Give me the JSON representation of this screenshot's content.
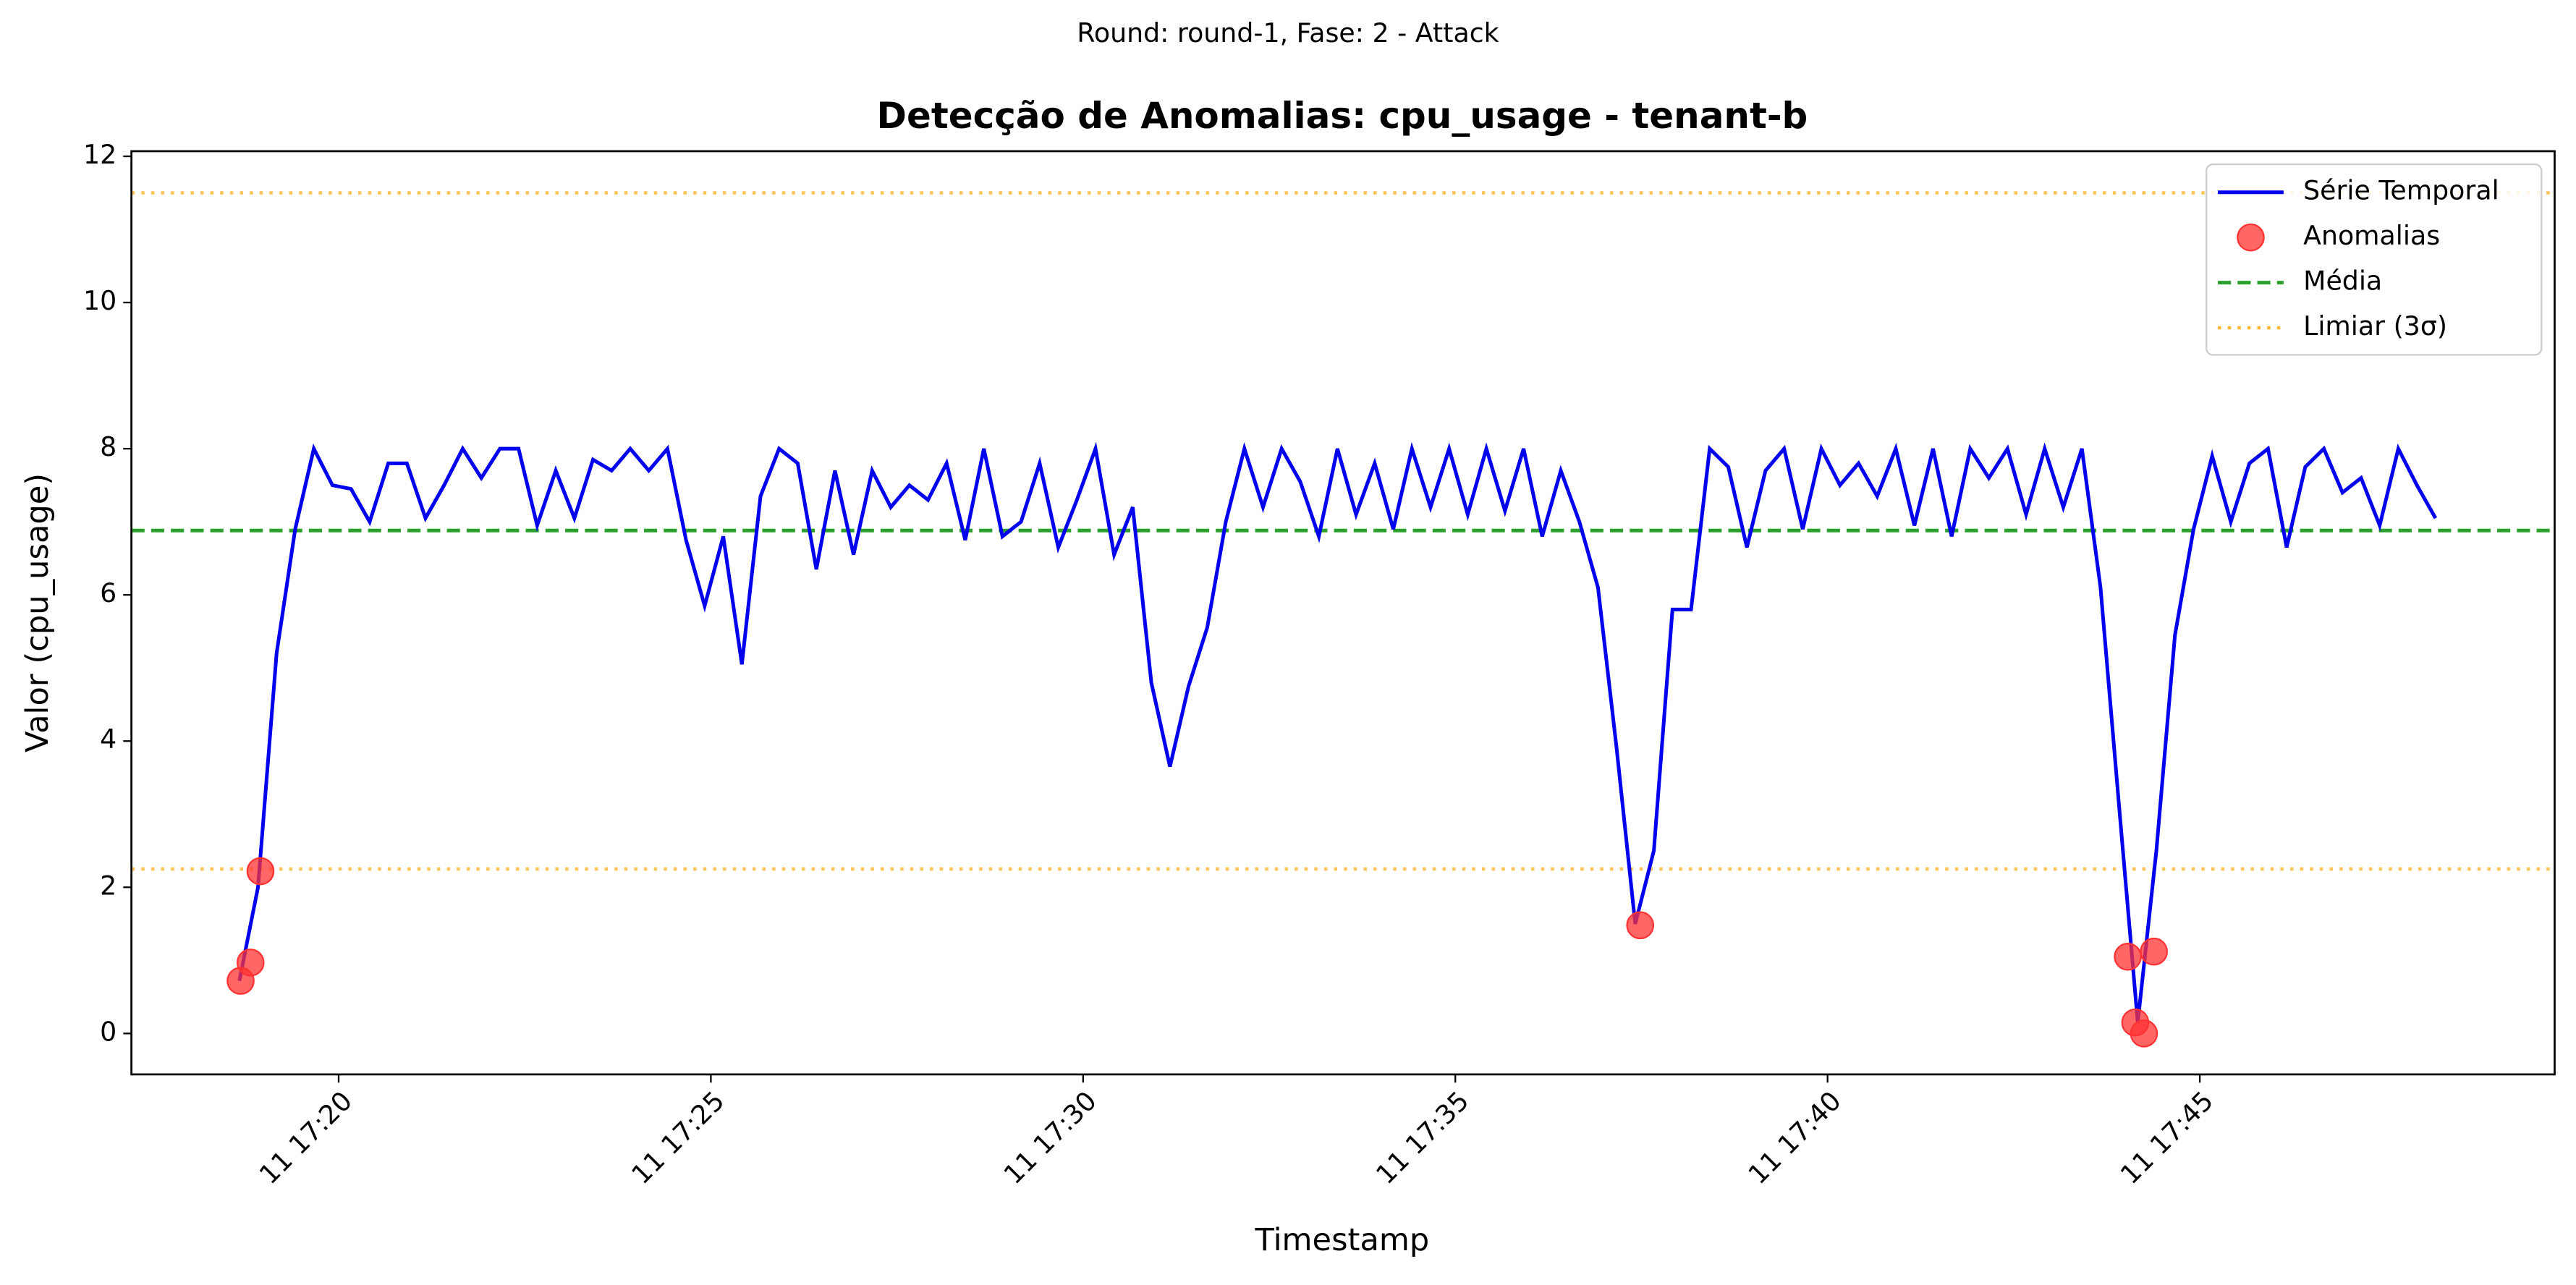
{
  "chart_data": {
    "type": "line",
    "suptitle": "Round: round-1, Fase: 2 - Attack",
    "title": "Detecção de Anomalias: cpu_usage - tenant-b",
    "xlabel": "Timestamp",
    "ylabel": "Valor (cpu_usage)",
    "xlim": [
      "11 17:17:13",
      "11 17:49:46"
    ],
    "ylim": [
      -0.56,
      12.07
    ],
    "xticks": [
      "11 17:20",
      "11 17:25",
      "11 17:30",
      "11 17:35",
      "11 17:40",
      "11 17:45"
    ],
    "yticks": [
      0,
      2,
      4,
      6,
      8,
      10,
      12
    ],
    "legend": "upper right",
    "series": [
      {
        "name": "Série Temporal",
        "color": "#0000ee",
        "x": [
          "11 17:18:40",
          "11 17:18:55",
          "11 17:19:10",
          "11 17:19:25",
          "11 17:19:40",
          "11 17:19:55",
          "11 17:20:10",
          "11 17:20:25",
          "11 17:20:40",
          "11 17:20:55",
          "11 17:21:10",
          "11 17:21:25",
          "11 17:21:40",
          "11 17:21:55",
          "11 17:22:10",
          "11 17:22:25",
          "11 17:22:40",
          "11 17:22:55",
          "11 17:23:10",
          "11 17:23:25",
          "11 17:23:40",
          "11 17:23:55",
          "11 17:24:10",
          "11 17:24:25",
          "11 17:24:40",
          "11 17:24:55",
          "11 17:25:10",
          "11 17:25:25",
          "11 17:25:40",
          "11 17:25:55",
          "11 17:26:10",
          "11 17:26:25",
          "11 17:26:40",
          "11 17:26:55",
          "11 17:27:10",
          "11 17:27:25",
          "11 17:27:40",
          "11 17:27:55",
          "11 17:28:10",
          "11 17:28:25",
          "11 17:28:40",
          "11 17:28:55",
          "11 17:29:10",
          "11 17:29:25",
          "11 17:29:40",
          "11 17:29:55",
          "11 17:30:10",
          "11 17:30:25",
          "11 17:30:40",
          "11 17:30:55",
          "11 17:31:10",
          "11 17:31:25",
          "11 17:31:40",
          "11 17:31:55",
          "11 17:32:10",
          "11 17:32:25",
          "11 17:32:40",
          "11 17:32:55",
          "11 17:33:10",
          "11 17:33:25",
          "11 17:33:40",
          "11 17:33:55",
          "11 17:34:10",
          "11 17:34:25",
          "11 17:34:40",
          "11 17:34:55",
          "11 17:35:10",
          "11 17:35:25",
          "11 17:35:40",
          "11 17:35:55",
          "11 17:36:10",
          "11 17:36:25",
          "11 17:36:40",
          "11 17:36:55",
          "11 17:37:10",
          "11 17:37:25",
          "11 17:37:40",
          "11 17:37:55",
          "11 17:38:10",
          "11 17:38:25",
          "11 17:38:40",
          "11 17:38:55",
          "11 17:39:10",
          "11 17:39:25",
          "11 17:39:40",
          "11 17:39:55",
          "11 17:40:10",
          "11 17:40:25",
          "11 17:40:40",
          "11 17:40:55",
          "11 17:41:10",
          "11 17:41:25",
          "11 17:41:40",
          "11 17:41:55",
          "11 17:42:10",
          "11 17:42:25",
          "11 17:42:40",
          "11 17:42:55",
          "11 17:43:10",
          "11 17:43:25",
          "11 17:43:40",
          "11 17:43:55",
          "11 17:44:10",
          "11 17:44:25",
          "11 17:44:40",
          "11 17:44:55",
          "11 17:45:10",
          "11 17:45:25",
          "11 17:45:40",
          "11 17:45:55",
          "11 17:46:10",
          "11 17:46:25",
          "11 17:46:40",
          "11 17:46:55",
          "11 17:47:10",
          "11 17:47:25",
          "11 17:47:40",
          "11 17:47:55",
          "11 17:48:10"
        ],
        "values": [
          0.72,
          2.0,
          5.2,
          6.9,
          8.0,
          7.5,
          7.45,
          7.0,
          7.8,
          7.8,
          7.05,
          7.5,
          8.0,
          7.6,
          8.0,
          8.0,
          6.95,
          7.7,
          7.05,
          7.85,
          7.7,
          8.0,
          7.7,
          8.0,
          6.75,
          5.85,
          6.8,
          5.05,
          7.35,
          8.0,
          7.8,
          6.35,
          7.7,
          6.55,
          7.7,
          7.2,
          7.5,
          7.3,
          7.8,
          6.75,
          8.0,
          6.8,
          7.0,
          7.8,
          6.65,
          7.3,
          8.0,
          6.55,
          7.2,
          4.8,
          3.65,
          4.75,
          5.55,
          7.0,
          8.0,
          7.2,
          8.0,
          7.55,
          6.8,
          8.0,
          7.1,
          7.8,
          6.9,
          8.0,
          7.2,
          8.0,
          7.1,
          8.0,
          7.15,
          8.0,
          6.8,
          7.7,
          7.0,
          6.1,
          3.9,
          1.5,
          2.5,
          5.8,
          5.8,
          8.0,
          7.75,
          6.65,
          7.7,
          8.0,
          6.9,
          8.0,
          7.5,
          7.8,
          7.35,
          8.0,
          6.95,
          8.0,
          6.8,
          8.0,
          7.6,
          8.0,
          7.1,
          8.0,
          7.2,
          8.0,
          6.1,
          3.1,
          0.15,
          2.5,
          5.45,
          6.9,
          7.9,
          7.0,
          7.8,
          8.0,
          6.65,
          7.75,
          8.0,
          7.4,
          7.6,
          6.95,
          8.0,
          7.5,
          7.05
        ]
      }
    ],
    "anomalies": {
      "name": "Anomalias",
      "color": "#ff3333",
      "x": [
        "11 17:18:41",
        "11 17:18:49",
        "11 17:18:57",
        "11 17:37:29",
        "11 17:44:02",
        "11 17:44:08",
        "11 17:44:15",
        "11 17:44:23"
      ],
      "values": [
        0.72,
        0.97,
        2.22,
        1.48,
        1.05,
        0.15,
        0.0,
        1.12
      ]
    },
    "mean": {
      "name": "Média",
      "color": "#2ca02c",
      "value": 6.88
    },
    "threshold": {
      "name": "Limiar (3σ)",
      "color": "#ffb733",
      "values": [
        11.5,
        2.25
      ]
    }
  }
}
